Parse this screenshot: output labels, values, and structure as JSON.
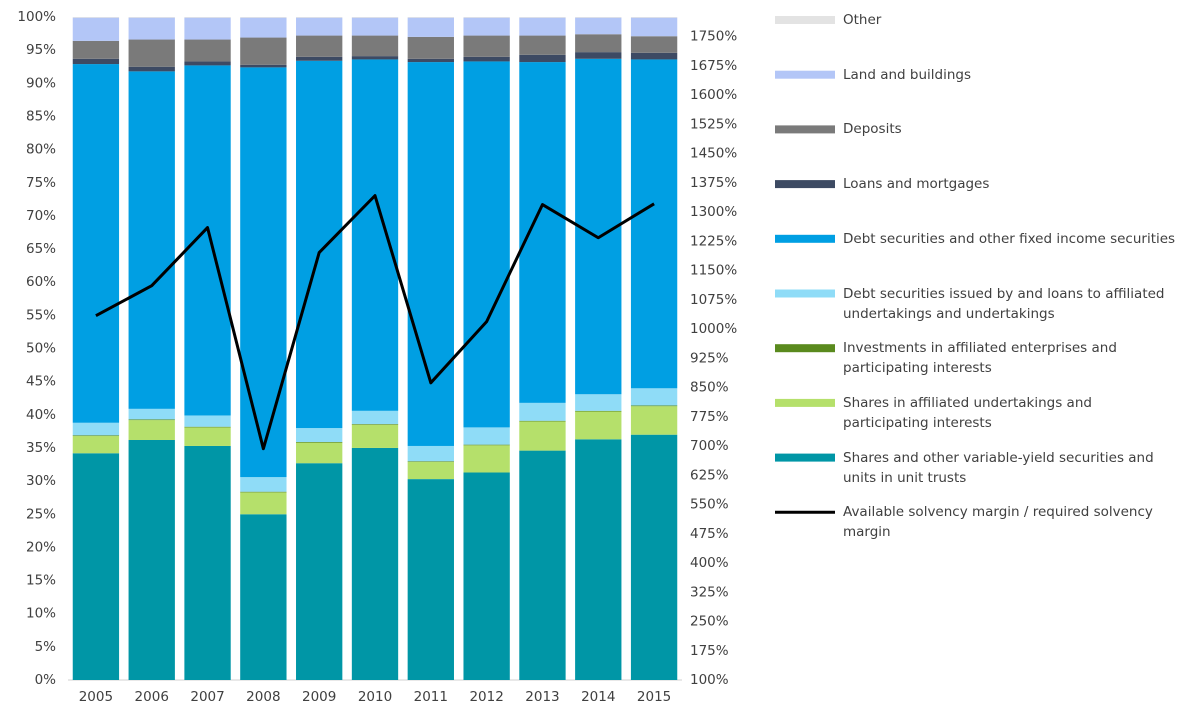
{
  "chart_data": {
    "type": "bar",
    "stacked": true,
    "categories": [
      "2005",
      "2006",
      "2007",
      "2008",
      "2009",
      "2010",
      "2011",
      "2012",
      "2013",
      "2014",
      "2015"
    ],
    "series": [
      {
        "name": "Shares and other variable-yield securities and units in unit trusts",
        "color": "#0096a6",
        "values": [
          34.2,
          36.2,
          35.3,
          25.0,
          32.7,
          35.0,
          30.3,
          31.3,
          34.6,
          36.3,
          37.0
        ]
      },
      {
        "name": "Shares in affiliated undertakings and participating interests",
        "color": "#b5e06b",
        "values": [
          2.6,
          3.0,
          2.8,
          3.3,
          3.1,
          3.5,
          2.6,
          4.1,
          4.4,
          4.2,
          4.3
        ]
      },
      {
        "name": "Investments in affiliated enterprises and participating interests",
        "color": "#5a8a1e",
        "values": [
          0.1,
          0.1,
          0.1,
          0.1,
          0.1,
          0.1,
          0.1,
          0.1,
          0.1,
          0.1,
          0.1
        ]
      },
      {
        "name": "Debt securities issued by and loans to affiliated undertakings and undertakings",
        "color": "#8fdcf7",
        "values": [
          1.9,
          1.6,
          1.7,
          2.2,
          2.1,
          2.0,
          2.3,
          2.6,
          2.7,
          2.5,
          2.6
        ]
      },
      {
        "name": "Debt securities and other fixed income securities",
        "color": "#009fe3",
        "values": [
          54.1,
          50.9,
          52.8,
          61.8,
          55.4,
          53.0,
          57.9,
          55.2,
          51.4,
          50.6,
          49.6
        ]
      },
      {
        "name": "Loans and mortgages",
        "color": "#3d4a63",
        "values": [
          0.8,
          0.7,
          0.6,
          0.4,
          0.6,
          0.5,
          0.5,
          0.7,
          1.1,
          1.0,
          1.0
        ]
      },
      {
        "name": "Deposits",
        "color": "#7a7a7a",
        "values": [
          2.7,
          4.1,
          3.3,
          4.1,
          3.2,
          3.1,
          3.3,
          3.2,
          2.9,
          2.7,
          2.5
        ]
      },
      {
        "name": "Land and buildings",
        "color": "#b3c6f7",
        "values": [
          3.5,
          3.3,
          3.3,
          3.0,
          2.7,
          2.7,
          2.9,
          2.7,
          2.7,
          2.5,
          2.8
        ]
      },
      {
        "name": "Other",
        "color": "#e3e3e3",
        "values": [
          0.1,
          0.1,
          0.1,
          0.1,
          0.1,
          0.1,
          0.1,
          0.1,
          0.1,
          0.1,
          0.1
        ]
      },
      {
        "name": "Available solvency margin / required solvency margin",
        "color": "#000000",
        "type": "line",
        "axis": "y2",
        "values": [
          1034,
          1111,
          1260,
          693,
          1196,
          1342,
          862,
          1019,
          1319,
          1234,
          1321
        ]
      }
    ],
    "ylim": [
      0,
      100
    ],
    "yticks": [
      {
        "value": 0,
        "label": "0%"
      },
      {
        "value": 5,
        "label": "5%"
      },
      {
        "value": 10,
        "label": "10%"
      },
      {
        "value": 15,
        "label": "15%"
      },
      {
        "value": 20,
        "label": "20%"
      },
      {
        "value": 25,
        "label": "25%"
      },
      {
        "value": 30,
        "label": "30%"
      },
      {
        "value": 35,
        "label": "35%"
      },
      {
        "value": 40,
        "label": "40%"
      },
      {
        "value": 45,
        "label": "45%"
      },
      {
        "value": 50,
        "label": "50%"
      },
      {
        "value": 55,
        "label": "55%"
      },
      {
        "value": 60,
        "label": "60%"
      },
      {
        "value": 65,
        "label": "65%"
      },
      {
        "value": 70,
        "label": "70%"
      },
      {
        "value": 75,
        "label": "75%"
      },
      {
        "value": 80,
        "label": "80%"
      },
      {
        "value": 85,
        "label": "85%"
      },
      {
        "value": 90,
        "label": "90%"
      },
      {
        "value": 95,
        "label": "95%"
      },
      {
        "value": 100,
        "label": "100%"
      }
    ],
    "y2lim": [
      100,
      1800
    ],
    "y2ticks": [
      {
        "value": 100,
        "label": "100%"
      },
      {
        "value": 175,
        "label": "175%"
      },
      {
        "value": 250,
        "label": "250%"
      },
      {
        "value": 325,
        "label": "325%"
      },
      {
        "value": 400,
        "label": "400%"
      },
      {
        "value": 475,
        "label": "475%"
      },
      {
        "value": 550,
        "label": "550%"
      },
      {
        "value": 625,
        "label": "625%"
      },
      {
        "value": 700,
        "label": "700%"
      },
      {
        "value": 775,
        "label": "775%"
      },
      {
        "value": 850,
        "label": "850%"
      },
      {
        "value": 925,
        "label": "925%"
      },
      {
        "value": 1000,
        "label": "1000%"
      },
      {
        "value": 1075,
        "label": "1075%"
      },
      {
        "value": 1150,
        "label": "1150%"
      },
      {
        "value": 1225,
        "label": "1225%"
      },
      {
        "value": 1300,
        "label": "1300%"
      },
      {
        "value": 1375,
        "label": "1375%"
      },
      {
        "value": 1450,
        "label": "1450%"
      },
      {
        "value": 1525,
        "label": "1525%"
      },
      {
        "value": 1600,
        "label": "1600%"
      },
      {
        "value": 1675,
        "label": "1675%"
      },
      {
        "value": 1750,
        "label": "1750%"
      }
    ],
    "legend": "right"
  }
}
